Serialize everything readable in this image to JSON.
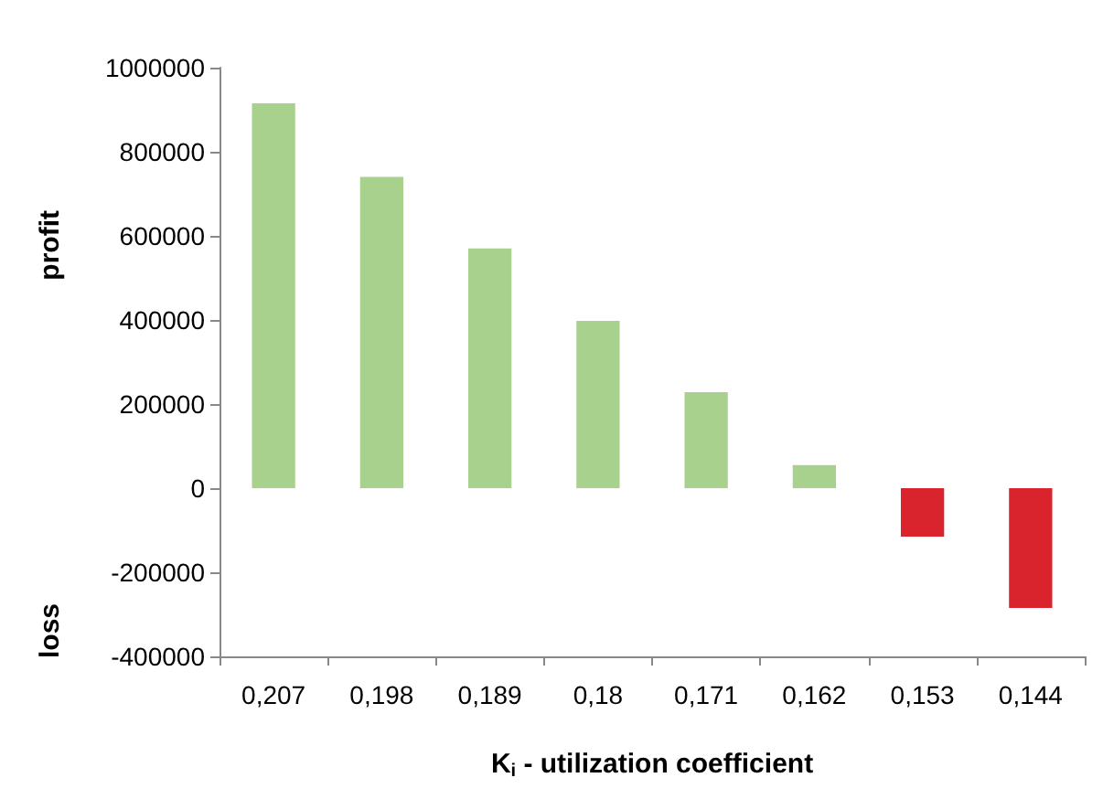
{
  "chart_data": {
    "type": "bar",
    "ylabel": "profit",
    "annotations": [
      "loss"
    ],
    "xlabel": "K$_{i}$ - utilization coefficient",
    "categories": [
      "0,207",
      "0,198",
      "0,189",
      "0,18",
      "0,171",
      "0,162",
      "0,153",
      "0,144"
    ],
    "values": [
      915000,
      740000,
      570000,
      398000,
      228000,
      55000,
      -115000,
      -285000
    ],
    "colors": [
      "#a9d18e",
      "#a9d18e",
      "#a9d18e",
      "#a9d18e",
      "#a9d18e",
      "#a9d18e",
      "#d9232d",
      "#d9232d"
    ],
    "ylim": [
      -400000,
      1000000
    ],
    "yticks": [
      -400000,
      -200000,
      0,
      200000,
      400000,
      600000,
      800000,
      1000000
    ],
    "grid": false
  }
}
